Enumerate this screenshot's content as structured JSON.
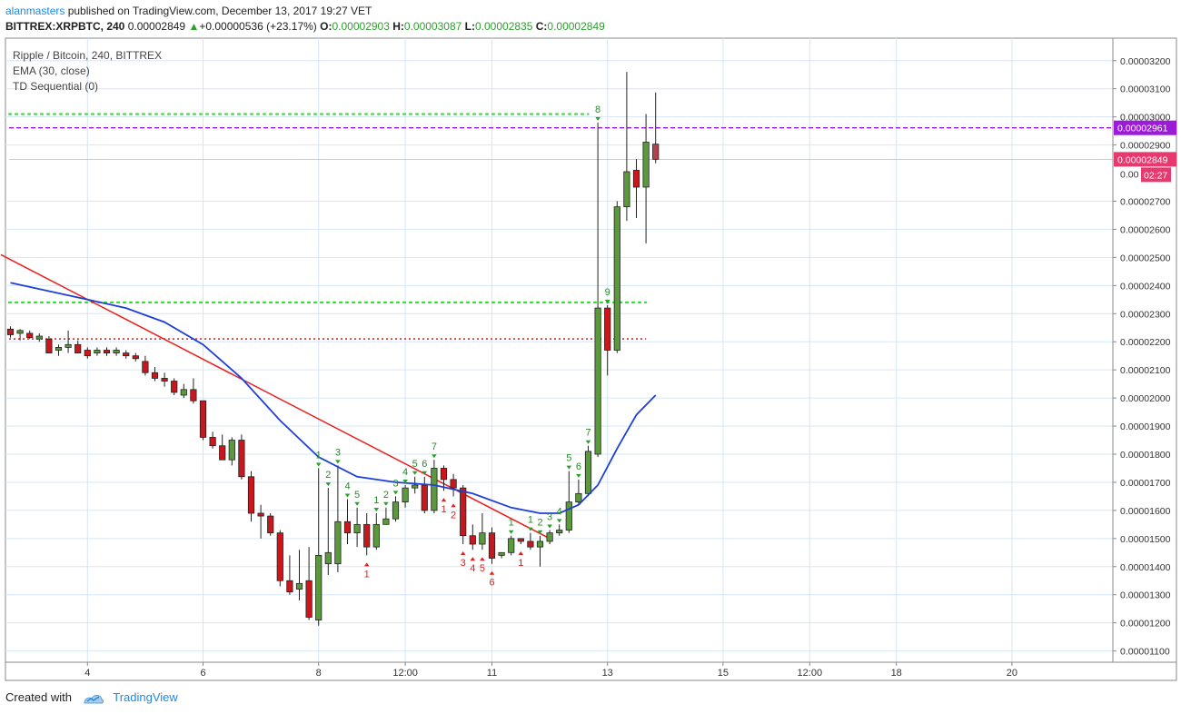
{
  "header": {
    "author": "alanmasters",
    "published_text": " published on TradingView.com, December 13, 2017 19:27 VET",
    "symbol": "BITTREX:XRPBTC, 240",
    "last": "0.00002849",
    "arrow": "▲",
    "change": "+0.00000536 (+23.17%)",
    "o_label": "O:",
    "o_value": "0.00002903",
    "h_label": "H:",
    "h_value": "0.00003087",
    "l_label": "L:",
    "l_value": "0.00002835",
    "c_label": "C:",
    "c_value": "0.00002849"
  },
  "legend": {
    "line1": "Ripple / Bitcoin, 240, BITTREX",
    "line2": "EMA (30, close)",
    "line3": "TD Sequential (0)"
  },
  "price_labels": {
    "level_purple": "0.00002961",
    "level_red": "0.00002849",
    "partial": "0.00",
    "countdown": "02:27"
  },
  "footer": {
    "created_with": "Created with",
    "brand": "TradingView"
  },
  "colors": {
    "up": "#5b9a3c",
    "down": "#c8181e",
    "ema": "#1f3fd8",
    "trend": "#ee1c1c",
    "green_dots": "#33dd33",
    "red_dots": "#e53935",
    "purple_dash": "#9b1bd9",
    "grid": "#d6e6f5"
  },
  "chart_data": {
    "type": "candlestick",
    "title": "Ripple / Bitcoin, 240, BITTREX",
    "y_axis_ticks": [
      "0.00003200",
      "0.00003100",
      "0.00003000",
      "0.00002900",
      "0.00002700",
      "0.00002600",
      "0.00002500",
      "0.00002400",
      "0.00002300",
      "0.00002200",
      "0.00002100",
      "0.00002000",
      "0.00001900",
      "0.00001800",
      "0.00001700",
      "0.00001600",
      "0.00001500",
      "0.00001400",
      "0.00001300",
      "0.00001200",
      "0.00001100"
    ],
    "y_ticks": [
      3.2e-05,
      3.1e-05,
      3e-05,
      2.9e-05,
      2.7e-05,
      2.6e-05,
      2.5e-05,
      2.4e-05,
      2.3e-05,
      2.2e-05,
      2.1e-05,
      2e-05,
      1.9e-05,
      1.8e-05,
      1.7e-05,
      1.6e-05,
      1.5e-05,
      1.4e-05,
      1.3e-05,
      1.2e-05,
      1.1e-05
    ],
    "ylim": [
      1.06e-05,
      3.28e-05
    ],
    "x_axis_ticks": [
      {
        "label": "4",
        "i": 8
      },
      {
        "label": "6",
        "i": 20
      },
      {
        "label": "8",
        "i": 32
      },
      {
        "label": "12:00",
        "i": 41
      },
      {
        "label": "11",
        "i": 50
      },
      {
        "label": "13",
        "i": 62
      },
      {
        "label": "15",
        "i": 74
      },
      {
        "label": "12:00",
        "i": 83
      },
      {
        "label": "18",
        "i": 92
      },
      {
        "label": "20",
        "i": 104
      }
    ],
    "candles": [
      {
        "o": 2.245e-05,
        "h": 2.255e-05,
        "l": 2.215e-05,
        "c": 2.225e-05
      },
      {
        "o": 2.23e-05,
        "h": 2.245e-05,
        "l": 2.205e-05,
        "c": 2.24e-05
      },
      {
        "o": 2.23e-05,
        "h": 2.24e-05,
        "l": 2.21e-05,
        "c": 2.215e-05
      },
      {
        "o": 2.21e-05,
        "h": 2.23e-05,
        "l": 2.2e-05,
        "c": 2.22e-05
      },
      {
        "o": 2.21e-05,
        "h": 2.22e-05,
        "l": 2.16e-05,
        "c": 2.16e-05
      },
      {
        "o": 2.17e-05,
        "h": 2.19e-05,
        "l": 2.15e-05,
        "c": 2.18e-05
      },
      {
        "o": 2.18e-05,
        "h": 2.24e-05,
        "l": 2.16e-05,
        "c": 2.19e-05
      },
      {
        "o": 2.19e-05,
        "h": 2.205e-05,
        "l": 2.17e-05,
        "c": 2.16e-05
      },
      {
        "o": 2.17e-05,
        "h": 2.18e-05,
        "l": 2.14e-05,
        "c": 2.15e-05
      },
      {
        "o": 2.16e-05,
        "h": 2.18e-05,
        "l": 2.15e-05,
        "c": 2.17e-05
      },
      {
        "o": 2.17e-05,
        "h": 2.18e-05,
        "l": 2.15e-05,
        "c": 2.16e-05
      },
      {
        "o": 2.16e-05,
        "h": 2.18e-05,
        "l": 2.15e-05,
        "c": 2.17e-05
      },
      {
        "o": 2.16e-05,
        "h": 2.17e-05,
        "l": 2.14e-05,
        "c": 2.15e-05
      },
      {
        "o": 2.15e-05,
        "h": 2.16e-05,
        "l": 2.13e-05,
        "c": 2.14e-05
      },
      {
        "o": 2.13e-05,
        "h": 2.15e-05,
        "l": 2.08e-05,
        "c": 2.09e-05
      },
      {
        "o": 2.09e-05,
        "h": 2.11e-05,
        "l": 2.06e-05,
        "c": 2.07e-05
      },
      {
        "o": 2.07e-05,
        "h": 2.09e-05,
        "l": 2.04e-05,
        "c": 2.06e-05
      },
      {
        "o": 2.06e-05,
        "h": 2.07e-05,
        "l": 2.01e-05,
        "c": 2.02e-05
      },
      {
        "o": 2.01e-05,
        "h": 2.05e-05,
        "l": 2e-05,
        "c": 2.03e-05
      },
      {
        "o": 2.03e-05,
        "h": 2.07e-05,
        "l": 1.98e-05,
        "c": 1.99e-05
      },
      {
        "o": 1.99e-05,
        "h": 1.99e-05,
        "l": 1.85e-05,
        "c": 1.86e-05
      },
      {
        "o": 1.86e-05,
        "h": 1.88e-05,
        "l": 1.82e-05,
        "c": 1.83e-05
      },
      {
        "o": 1.83e-05,
        "h": 1.87e-05,
        "l": 1.79e-05,
        "c": 1.78e-05
      },
      {
        "o": 1.78e-05,
        "h": 1.86e-05,
        "l": 1.76e-05,
        "c": 1.85e-05
      },
      {
        "o": 1.85e-05,
        "h": 1.87e-05,
        "l": 1.71e-05,
        "c": 1.72e-05
      },
      {
        "o": 1.72e-05,
        "h": 1.74e-05,
        "l": 1.56e-05,
        "c": 1.59e-05
      },
      {
        "o": 1.59e-05,
        "h": 1.62e-05,
        "l": 1.5e-05,
        "c": 1.58e-05
      },
      {
        "o": 1.58e-05,
        "h": 1.59e-05,
        "l": 1.51e-05,
        "c": 1.52e-05
      },
      {
        "o": 1.52e-05,
        "h": 1.53e-05,
        "l": 1.33e-05,
        "c": 1.35e-05
      },
      {
        "o": 1.35e-05,
        "h": 1.44e-05,
        "l": 1.3e-05,
        "c": 1.31e-05
      },
      {
        "o": 1.32e-05,
        "h": 1.46e-05,
        "l": 1.28e-05,
        "c": 1.34e-05
      },
      {
        "o": 1.35e-05,
        "h": 1.47e-05,
        "l": 1.21e-05,
        "c": 1.22e-05
      },
      {
        "o": 1.21e-05,
        "h": 1.75e-05,
        "l": 1.19e-05,
        "c": 1.44e-05
      },
      {
        "o": 1.41e-05,
        "h": 1.68e-05,
        "l": 1.37e-05,
        "c": 1.45e-05
      },
      {
        "o": 1.41e-05,
        "h": 1.76e-05,
        "l": 1.38e-05,
        "c": 1.56e-05
      },
      {
        "o": 1.56e-05,
        "h": 1.64e-05,
        "l": 1.48e-05,
        "c": 1.52e-05
      },
      {
        "o": 1.52e-05,
        "h": 1.61e-05,
        "l": 1.47e-05,
        "c": 1.55e-05
      },
      {
        "o": 1.55e-05,
        "h": 1.59e-05,
        "l": 1.44e-05,
        "c": 1.47e-05
      },
      {
        "o": 1.47e-05,
        "h": 1.59e-05,
        "l": 1.46e-05,
        "c": 1.55e-05
      },
      {
        "o": 1.55e-05,
        "h": 1.61e-05,
        "l": 1.55e-05,
        "c": 1.57e-05
      },
      {
        "o": 1.57e-05,
        "h": 1.65e-05,
        "l": 1.56e-05,
        "c": 1.63e-05
      },
      {
        "o": 1.63e-05,
        "h": 1.69e-05,
        "l": 1.61e-05,
        "c": 1.68e-05
      },
      {
        "o": 1.68e-05,
        "h": 1.72e-05,
        "l": 1.66e-05,
        "c": 1.69e-05
      },
      {
        "o": 1.69e-05,
        "h": 1.72e-05,
        "l": 1.59e-05,
        "c": 1.6e-05
      },
      {
        "o": 1.6e-05,
        "h": 1.78e-05,
        "l": 1.59e-05,
        "c": 1.75e-05
      },
      {
        "o": 1.75e-05,
        "h": 1.76e-05,
        "l": 1.67e-05,
        "c": 1.71e-05
      },
      {
        "o": 1.71e-05,
        "h": 1.73e-05,
        "l": 1.65e-05,
        "c": 1.68e-05
      },
      {
        "o": 1.68e-05,
        "h": 1.69e-05,
        "l": 1.48e-05,
        "c": 1.51e-05
      },
      {
        "o": 1.51e-05,
        "h": 1.55e-05,
        "l": 1.46e-05,
        "c": 1.48e-05
      },
      {
        "o": 1.48e-05,
        "h": 1.59e-05,
        "l": 1.46e-05,
        "c": 1.52e-05
      },
      {
        "o": 1.52e-05,
        "h": 1.54e-05,
        "l": 1.41e-05,
        "c": 1.43e-05
      },
      {
        "o": 1.44e-05,
        "h": 1.45e-05,
        "l": 1.43e-05,
        "c": 1.45e-05
      },
      {
        "o": 1.45e-05,
        "h": 1.51e-05,
        "l": 1.44e-05,
        "c": 1.5e-05
      },
      {
        "o": 1.5e-05,
        "h": 1.5e-05,
        "l": 1.48e-05,
        "c": 1.49e-05
      },
      {
        "o": 1.49e-05,
        "h": 1.52e-05,
        "l": 1.46e-05,
        "c": 1.47e-05
      },
      {
        "o": 1.47e-05,
        "h": 1.51e-05,
        "l": 1.4e-05,
        "c": 1.49e-05
      },
      {
        "o": 1.49e-05,
        "h": 1.53e-05,
        "l": 1.48e-05,
        "c": 1.52e-05
      },
      {
        "o": 1.52e-05,
        "h": 1.55e-05,
        "l": 1.51e-05,
        "c": 1.53e-05
      },
      {
        "o": 1.53e-05,
        "h": 1.74e-05,
        "l": 1.52e-05,
        "c": 1.63e-05
      },
      {
        "o": 1.63e-05,
        "h": 1.71e-05,
        "l": 1.62e-05,
        "c": 1.66e-05
      },
      {
        "o": 1.66e-05,
        "h": 1.83e-05,
        "l": 1.65e-05,
        "c": 1.81e-05
      },
      {
        "o": 1.8e-05,
        "h": 2.98e-05,
        "l": 1.79e-05,
        "c": 2.32e-05
      },
      {
        "o": 2.32e-05,
        "h": 2.33e-05,
        "l": 2.08e-05,
        "c": 2.17e-05
      },
      {
        "o": 2.17e-05,
        "h": 2.7e-05,
        "l": 2.16e-05,
        "c": 2.68e-05
      },
      {
        "o": 2.68e-05,
        "h": 3.16e-05,
        "l": 2.63e-05,
        "c": 2.805e-05
      },
      {
        "o": 2.81e-05,
        "h": 2.85e-05,
        "l": 2.64e-05,
        "c": 2.75e-05
      },
      {
        "o": 2.75e-05,
        "h": 3.01e-05,
        "l": 2.55e-05,
        "c": 2.91e-05
      },
      {
        "o": 2.903e-05,
        "h": 3.087e-05,
        "l": 2.835e-05,
        "c": 2.849e-05
      }
    ],
    "ema": [
      {
        "i": 0,
        "v": 2.41e-05
      },
      {
        "i": 4,
        "v": 2.38e-05
      },
      {
        "i": 8,
        "v": 2.35e-05
      },
      {
        "i": 12,
        "v": 2.32e-05
      },
      {
        "i": 16,
        "v": 2.27e-05
      },
      {
        "i": 20,
        "v": 2.19e-05
      },
      {
        "i": 24,
        "v": 2.07e-05
      },
      {
        "i": 28,
        "v": 1.92e-05
      },
      {
        "i": 32,
        "v": 1.79e-05
      },
      {
        "i": 36,
        "v": 1.72e-05
      },
      {
        "i": 40,
        "v": 1.7e-05
      },
      {
        "i": 44,
        "v": 1.69e-05
      },
      {
        "i": 48,
        "v": 1.66e-05
      },
      {
        "i": 52,
        "v": 1.61e-05
      },
      {
        "i": 55,
        "v": 1.59e-05
      },
      {
        "i": 57,
        "v": 1.59e-05
      },
      {
        "i": 59,
        "v": 1.62e-05
      },
      {
        "i": 61,
        "v": 1.69e-05
      },
      {
        "i": 63,
        "v": 1.82e-05
      },
      {
        "i": 65,
        "v": 1.94e-05
      },
      {
        "i": 67,
        "v": 2.01e-05
      }
    ],
    "trendline": [
      {
        "i": -1,
        "v": 2.51e-05
      },
      {
        "i": 56,
        "v": 1.5e-05
      }
    ],
    "h_levels": [
      {
        "name": "green-dotted-top",
        "v": 3.01e-05,
        "from": 0,
        "to": 60,
        "style": "green_dots"
      },
      {
        "name": "purple-dashed",
        "v": 2.961e-05,
        "from": 0,
        "to": 109,
        "style": "purple_dash"
      },
      {
        "name": "red-thin",
        "v": 2.849e-05,
        "from": 0,
        "to": 109,
        "style": "red_thin"
      },
      {
        "name": "green-dotted-mid",
        "v": 2.34e-05,
        "from": 0,
        "to": 66,
        "style": "green_dots"
      },
      {
        "name": "red-dotted",
        "v": 2.21e-05,
        "from": 0,
        "to": 66,
        "style": "red_dots"
      }
    ],
    "td_labels": [
      {
        "i": 32,
        "t": "1",
        "c": "green"
      },
      {
        "i": 33,
        "t": "2",
        "c": "green"
      },
      {
        "i": 34,
        "t": "3",
        "c": "green"
      },
      {
        "i": 35,
        "t": "4",
        "c": "green"
      },
      {
        "i": 36,
        "t": "5",
        "c": "green"
      },
      {
        "i": 37,
        "t": "1",
        "c": "red"
      },
      {
        "i": 38,
        "t": "1",
        "c": "green"
      },
      {
        "i": 39,
        "t": "2",
        "c": "green"
      },
      {
        "i": 40,
        "t": "3",
        "c": "green"
      },
      {
        "i": 41,
        "t": "4",
        "c": "green"
      },
      {
        "i": 42,
        "t": "5",
        "c": "green"
      },
      {
        "i": 43,
        "t": "6",
        "c": "green"
      },
      {
        "i": 44,
        "t": "7",
        "c": "green"
      },
      {
        "i": 45,
        "t": "1",
        "c": "red"
      },
      {
        "i": 46,
        "t": "2",
        "c": "red"
      },
      {
        "i": 47,
        "t": "3",
        "c": "red"
      },
      {
        "i": 48,
        "t": "4",
        "c": "red"
      },
      {
        "i": 49,
        "t": "5",
        "c": "red"
      },
      {
        "i": 50,
        "t": "6",
        "c": "red"
      },
      {
        "i": 52,
        "t": "1",
        "c": "green"
      },
      {
        "i": 53,
        "t": "1",
        "c": "red"
      },
      {
        "i": 54,
        "t": "1",
        "c": "green"
      },
      {
        "i": 55,
        "t": "2",
        "c": "green"
      },
      {
        "i": 56,
        "t": "3",
        "c": "green"
      },
      {
        "i": 57,
        "t": "4",
        "c": "green"
      },
      {
        "i": 58,
        "t": "5",
        "c": "green"
      },
      {
        "i": 59,
        "t": "6",
        "c": "green"
      },
      {
        "i": 60,
        "t": "7",
        "c": "green"
      },
      {
        "i": 61,
        "t": "8",
        "c": "green"
      },
      {
        "i": 62,
        "t": "9",
        "c": "green"
      }
    ]
  }
}
